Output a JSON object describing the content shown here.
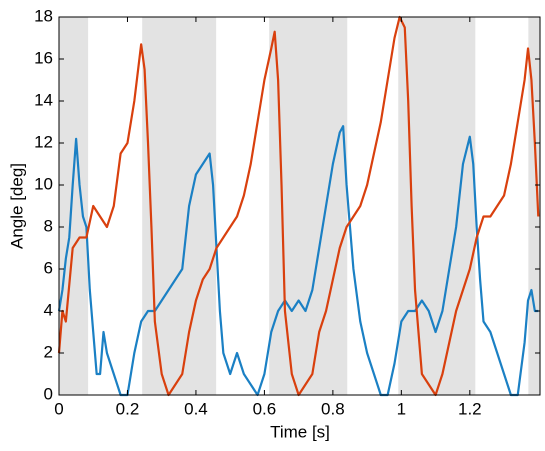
{
  "chart_data": {
    "type": "line",
    "x_label": "Time [s]",
    "y_label": "Angle [deg]",
    "xlim": [
      0,
      1.405
    ],
    "ylim": [
      0,
      18
    ],
    "xticks": [
      0,
      0.2,
      0.4,
      0.6,
      0.8,
      1,
      1.2
    ],
    "yticks": [
      0,
      2,
      4,
      6,
      8,
      10,
      12,
      14,
      16,
      18
    ],
    "shaded_spans": [
      [
        0,
        0.085
      ],
      [
        0.243,
        0.459
      ],
      [
        0.614,
        0.842
      ],
      [
        0.991,
        1.216
      ],
      [
        1.371,
        1.405
      ]
    ],
    "shade_color": "#e3e3e3",
    "series": [
      {
        "color": "#1b80c4",
        "x": [
          0,
          0.01,
          0.02,
          0.03,
          0.04,
          0.05,
          0.06,
          0.07,
          0.08,
          0.09,
          0.1,
          0.11,
          0.12,
          0.13,
          0.14,
          0.16,
          0.18,
          0.2,
          0.22,
          0.24,
          0.26,
          0.28,
          0.3,
          0.32,
          0.34,
          0.36,
          0.38,
          0.4,
          0.42,
          0.44,
          0.45,
          0.46,
          0.47,
          0.48,
          0.5,
          0.52,
          0.54,
          0.56,
          0.58,
          0.6,
          0.62,
          0.64,
          0.66,
          0.68,
          0.7,
          0.72,
          0.74,
          0.76,
          0.78,
          0.8,
          0.82,
          0.83,
          0.84,
          0.85,
          0.86,
          0.88,
          0.9,
          0.92,
          0.94,
          0.96,
          0.98,
          1,
          1.02,
          1.04,
          1.06,
          1.08,
          1.1,
          1.12,
          1.14,
          1.16,
          1.18,
          1.2,
          1.21,
          1.22,
          1.23,
          1.24,
          1.26,
          1.28,
          1.3,
          1.32,
          1.34,
          1.36,
          1.37,
          1.38,
          1.39,
          1.4
        ],
        "values": [
          4,
          5,
          6.5,
          7.5,
          10,
          12.2,
          10,
          8.5,
          8,
          5,
          3,
          1,
          1,
          3,
          2,
          1,
          0,
          0,
          2,
          3.5,
          4,
          4,
          4.5,
          5,
          5.5,
          6,
          9,
          10.5,
          11,
          11.5,
          10,
          7,
          4,
          2,
          1,
          2,
          1,
          0.5,
          0,
          1,
          3,
          4,
          4.5,
          4,
          4.5,
          4,
          5,
          7,
          9,
          11,
          12.5,
          12.8,
          10,
          8,
          6,
          3.5,
          2,
          1,
          0,
          0,
          1.5,
          3.5,
          4,
          4,
          4.5,
          4,
          3,
          4,
          6,
          8,
          11,
          12.3,
          11,
          8,
          5.5,
          3.5,
          3,
          2,
          1,
          0,
          0,
          2.5,
          4.5,
          5,
          4,
          4
        ]
      },
      {
        "color": "#d9400e",
        "x": [
          0,
          0.01,
          0.02,
          0.04,
          0.06,
          0.08,
          0.1,
          0.12,
          0.14,
          0.16,
          0.18,
          0.2,
          0.22,
          0.24,
          0.25,
          0.26,
          0.27,
          0.28,
          0.3,
          0.32,
          0.34,
          0.36,
          0.38,
          0.4,
          0.42,
          0.44,
          0.46,
          0.48,
          0.5,
          0.52,
          0.54,
          0.56,
          0.58,
          0.6,
          0.62,
          0.63,
          0.64,
          0.65,
          0.66,
          0.68,
          0.7,
          0.72,
          0.74,
          0.76,
          0.78,
          0.8,
          0.82,
          0.84,
          0.86,
          0.88,
          0.9,
          0.92,
          0.94,
          0.96,
          0.98,
          0.995,
          1.01,
          1.02,
          1.03,
          1.04,
          1.06,
          1.08,
          1.1,
          1.12,
          1.14,
          1.16,
          1.18,
          1.2,
          1.22,
          1.24,
          1.26,
          1.28,
          1.3,
          1.32,
          1.34,
          1.36,
          1.37,
          1.38,
          1.39,
          1.4
        ],
        "values": [
          2,
          4,
          3.5,
          7,
          7.5,
          7.5,
          9,
          8.5,
          8,
          9,
          11.5,
          12,
          14,
          16.7,
          15.5,
          12,
          8,
          3.5,
          1,
          0,
          0.5,
          1,
          3,
          4.5,
          5.5,
          6,
          7,
          7.5,
          8,
          8.5,
          9.5,
          11,
          13,
          15,
          16.5,
          17.3,
          15,
          10,
          4,
          1,
          0,
          0.5,
          1,
          3,
          4,
          5.5,
          7,
          8,
          8.5,
          9,
          10,
          11.5,
          13,
          15,
          17,
          18,
          17.5,
          14,
          9,
          5,
          1,
          0.5,
          0,
          1,
          2.5,
          4,
          5,
          6,
          7.5,
          8.5,
          8.5,
          9,
          9.5,
          11,
          13,
          15,
          16.5,
          15,
          12,
          8.5
        ]
      }
    ]
  }
}
